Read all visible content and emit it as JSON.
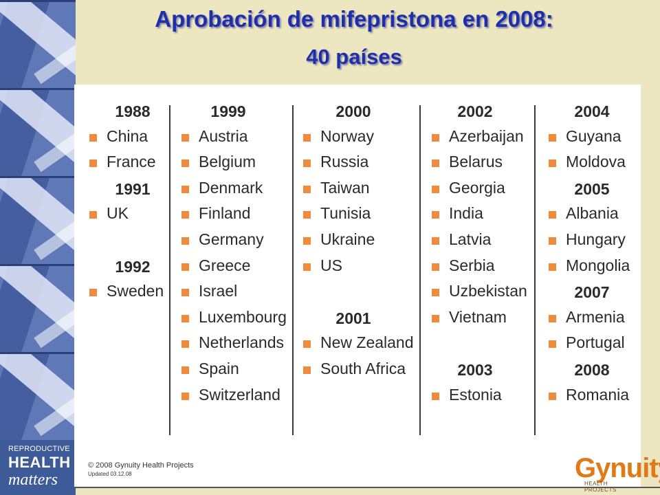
{
  "title": "Aprobación de mifepristona en 2008:",
  "subtitle": "40 países",
  "colors": {
    "title": "#1e2faa",
    "background": "#ede7c1",
    "bullet": "#f08a3c",
    "stripe": "#5e78b8",
    "brand_orange": "#e07a18"
  },
  "logo": {
    "line1": "REPRODUCTIVE",
    "line2": "HEALTH",
    "line3": "matters"
  },
  "chart_data": {
    "type": "table",
    "columns": [
      {
        "groups": [
          {
            "year": "1988",
            "countries": [
              "China",
              "France"
            ]
          },
          {
            "year": "1991",
            "countries": [
              "UK"
            ]
          },
          {
            "year": "1992",
            "countries": [
              "Sweden"
            ]
          }
        ]
      },
      {
        "groups": [
          {
            "year": "1999",
            "countries": [
              "Austria",
              "Belgium",
              "Denmark",
              "Finland",
              "Germany",
              "Greece",
              "Israel",
              "Luxembourg",
              "Netherlands",
              "Spain",
              "Switzerland"
            ]
          }
        ]
      },
      {
        "groups": [
          {
            "year": "2000",
            "countries": [
              "Norway",
              "Russia",
              "Taiwan",
              "Tunisia",
              "Ukraine",
              "US"
            ]
          },
          {
            "year": "2001",
            "countries": [
              "New Zealand",
              "South Africa"
            ]
          }
        ]
      },
      {
        "groups": [
          {
            "year": "2002",
            "countries": [
              "Azerbaijan",
              "Belarus",
              "Georgia",
              "India",
              "Latvia",
              "Serbia",
              "Uzbekistan",
              "Vietnam"
            ]
          },
          {
            "year": "2003",
            "countries": [
              "Estonia"
            ]
          }
        ]
      },
      {
        "groups": [
          {
            "year": "2004",
            "countries": [
              "Guyana",
              "Moldova"
            ]
          },
          {
            "year": "2005",
            "countries": [
              "Albania",
              "Hungary",
              "Mongolia"
            ]
          },
          {
            "year": "2007",
            "countries": [
              "Armenia",
              "Portugal"
            ]
          },
          {
            "year": "2008",
            "countries": [
              "Romania"
            ]
          }
        ]
      }
    ]
  },
  "credit": {
    "line1": "© 2008 Gynuity Health Projects",
    "line2": "Updated 03.12.08"
  },
  "brand": {
    "name": "Gynuity",
    "sub": "HEALTH PROJECTS"
  }
}
